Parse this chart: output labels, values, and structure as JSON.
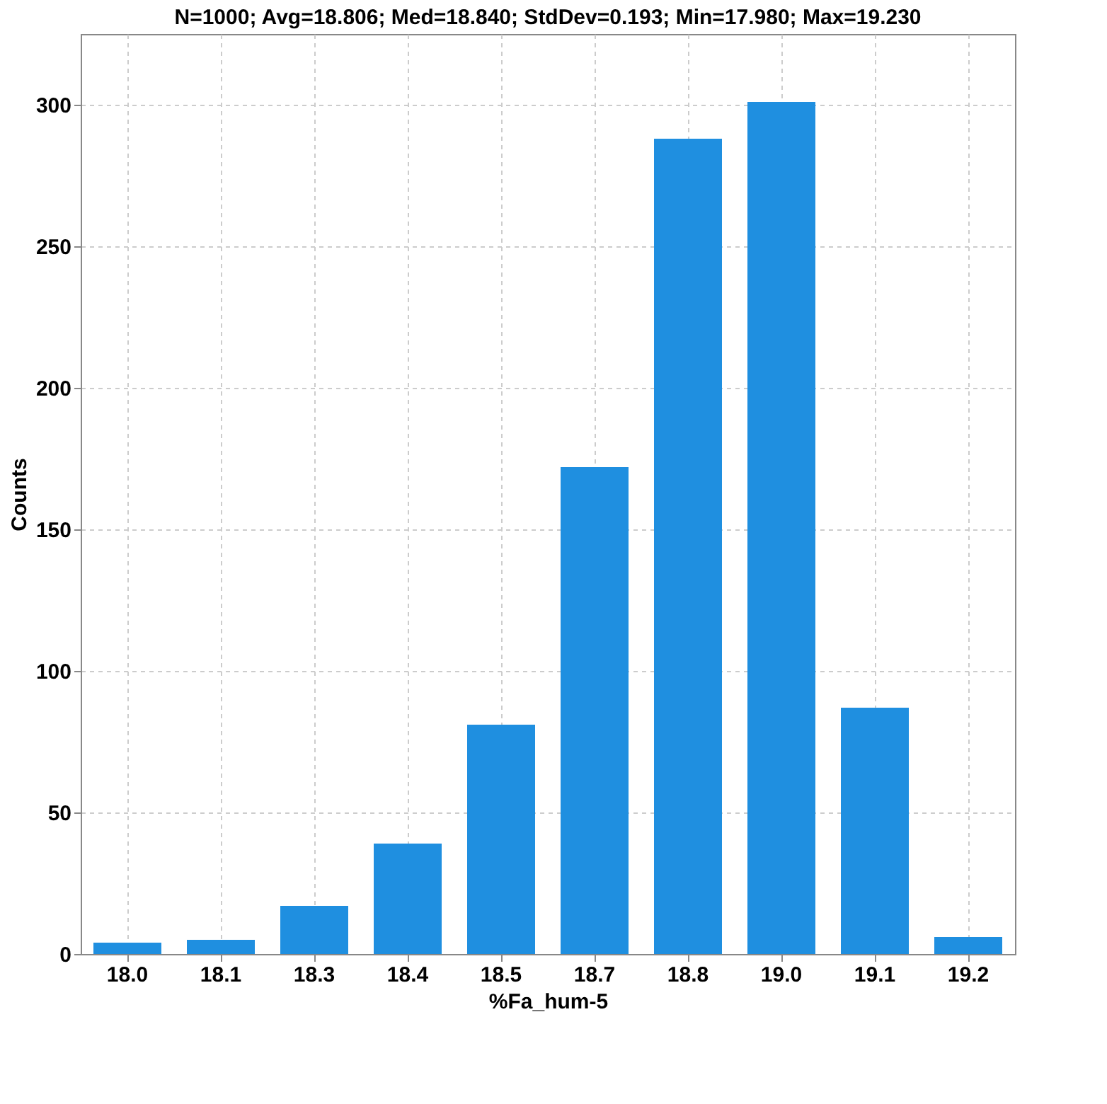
{
  "chart_data": {
    "type": "bar",
    "title": "N=1000; Avg=18.806; Med=18.840; StdDev=0.193; Min=17.980; Max=19.230",
    "xlabel": "%Fa_hum-5",
    "ylabel": "Counts",
    "categories": [
      "18.0",
      "18.1",
      "18.3",
      "18.4",
      "18.5",
      "18.7",
      "18.8",
      "19.0",
      "19.1",
      "19.2"
    ],
    "values": [
      4,
      5,
      17,
      39,
      81,
      172,
      288,
      301,
      87,
      6
    ],
    "color": "#1f8fe0",
    "ylim": [
      0,
      325
    ],
    "yticks": [
      0,
      50,
      100,
      150,
      200,
      250,
      300
    ],
    "grid": true
  }
}
